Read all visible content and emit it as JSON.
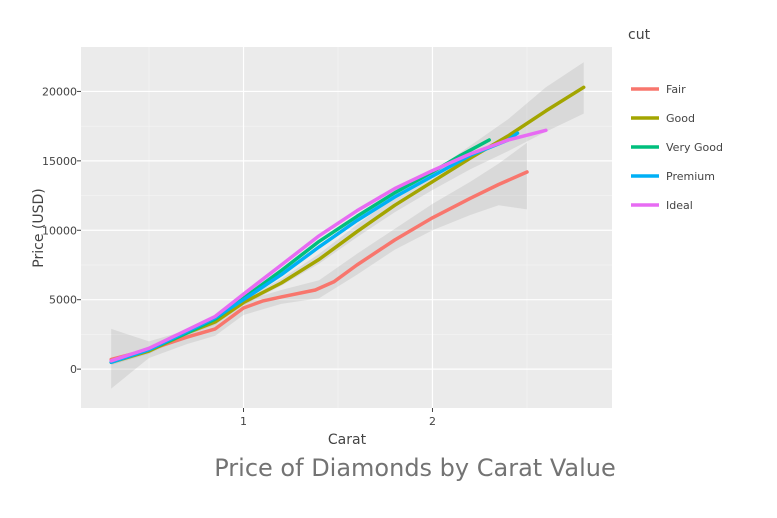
{
  "chart_data": {
    "type": "line",
    "title": "Price of Diamonds by Carat Value",
    "xlabel": "Carat",
    "ylabel": "Price (USD)",
    "xlim": [
      0.14,
      2.95
    ],
    "ylim": [
      -2800,
      23200
    ],
    "xticks": [
      {
        "v": 1,
        "label": "1"
      },
      {
        "v": 2,
        "label": "2"
      }
    ],
    "yticks": [
      {
        "v": 0,
        "label": "0"
      },
      {
        "v": 5000,
        "label": "5000"
      },
      {
        "v": 10000,
        "label": "10000"
      },
      {
        "v": 15000,
        "label": "15000"
      },
      {
        "v": 20000,
        "label": "20000"
      }
    ],
    "grid": true,
    "legend": {
      "title": "cut",
      "position": "right"
    },
    "series": [
      {
        "name": "Fair",
        "color": "#F8766D",
        "points": [
          [
            0.3,
            700
          ],
          [
            0.5,
            1400
          ],
          [
            0.7,
            2300
          ],
          [
            0.85,
            2900
          ],
          [
            1.0,
            4400
          ],
          [
            1.1,
            4900
          ],
          [
            1.2,
            5200
          ],
          [
            1.38,
            5700
          ],
          [
            1.48,
            6300
          ],
          [
            1.6,
            7500
          ],
          [
            1.8,
            9300
          ],
          [
            2.0,
            10900
          ],
          [
            2.2,
            12300
          ],
          [
            2.35,
            13300
          ],
          [
            2.5,
            14200
          ]
        ],
        "band": [
          [
            0.3,
            -1400,
            2900
          ],
          [
            0.5,
            800,
            2000
          ],
          [
            0.7,
            1800,
            2800
          ],
          [
            0.85,
            2400,
            3400
          ],
          [
            1.0,
            3900,
            4900
          ],
          [
            1.2,
            4700,
            5700
          ],
          [
            1.4,
            5100,
            6400
          ],
          [
            1.6,
            6800,
            8300
          ],
          [
            1.8,
            8600,
            10100
          ],
          [
            2.0,
            10000,
            11900
          ],
          [
            2.2,
            11100,
            13500
          ],
          [
            2.35,
            11800,
            14800
          ],
          [
            2.5,
            11500,
            16300
          ]
        ]
      },
      {
        "name": "Good",
        "color": "#A3A500",
        "points": [
          [
            0.3,
            500
          ],
          [
            0.5,
            1300
          ],
          [
            0.7,
            2600
          ],
          [
            0.85,
            3400
          ],
          [
            1.0,
            4800
          ],
          [
            1.2,
            6200
          ],
          [
            1.4,
            7900
          ],
          [
            1.6,
            9900
          ],
          [
            1.8,
            11800
          ],
          [
            2.0,
            13500
          ],
          [
            2.2,
            15200
          ],
          [
            2.4,
            16800
          ],
          [
            2.6,
            18600
          ],
          [
            2.8,
            20300
          ]
        ],
        "band": [
          [
            0.3,
            300,
            700
          ],
          [
            0.5,
            1100,
            1500
          ],
          [
            0.7,
            2400,
            2800
          ],
          [
            0.85,
            3200,
            3600
          ],
          [
            1.0,
            4600,
            5000
          ],
          [
            1.2,
            6000,
            6500
          ],
          [
            1.4,
            7600,
            8300
          ],
          [
            1.6,
            9500,
            10400
          ],
          [
            1.8,
            11300,
            12400
          ],
          [
            2.0,
            12900,
            14200
          ],
          [
            2.2,
            14400,
            16100
          ],
          [
            2.4,
            15700,
            18000
          ],
          [
            2.6,
            17100,
            20300
          ],
          [
            2.8,
            18400,
            22100
          ]
        ]
      },
      {
        "name": "Very Good",
        "color": "#00BF7D",
        "points": [
          [
            0.3,
            500
          ],
          [
            0.5,
            1400
          ],
          [
            0.7,
            2600
          ],
          [
            0.85,
            3600
          ],
          [
            1.0,
            5100
          ],
          [
            1.2,
            7100
          ],
          [
            1.4,
            9200
          ],
          [
            1.6,
            11000
          ],
          [
            1.8,
            12700
          ],
          [
            2.0,
            14200
          ],
          [
            2.15,
            15400
          ],
          [
            2.3,
            16500
          ]
        ]
      },
      {
        "name": "Premium",
        "color": "#00B0F6",
        "points": [
          [
            0.3,
            500
          ],
          [
            0.5,
            1400
          ],
          [
            0.7,
            2700
          ],
          [
            0.85,
            3700
          ],
          [
            1.0,
            5000
          ],
          [
            1.2,
            6800
          ],
          [
            1.4,
            8800
          ],
          [
            1.6,
            10700
          ],
          [
            1.8,
            12400
          ],
          [
            2.0,
            13900
          ],
          [
            2.2,
            15400
          ],
          [
            2.4,
            16500
          ],
          [
            2.45,
            17000
          ]
        ]
      },
      {
        "name": "Ideal",
        "color": "#E76BF3",
        "points": [
          [
            0.3,
            600
          ],
          [
            0.5,
            1500
          ],
          [
            0.7,
            2800
          ],
          [
            0.85,
            3800
          ],
          [
            1.0,
            5400
          ],
          [
            1.2,
            7500
          ],
          [
            1.4,
            9600
          ],
          [
            1.6,
            11400
          ],
          [
            1.8,
            13000
          ],
          [
            2.0,
            14300
          ],
          [
            2.2,
            15500
          ],
          [
            2.4,
            16500
          ],
          [
            2.6,
            17200
          ]
        ]
      }
    ]
  }
}
